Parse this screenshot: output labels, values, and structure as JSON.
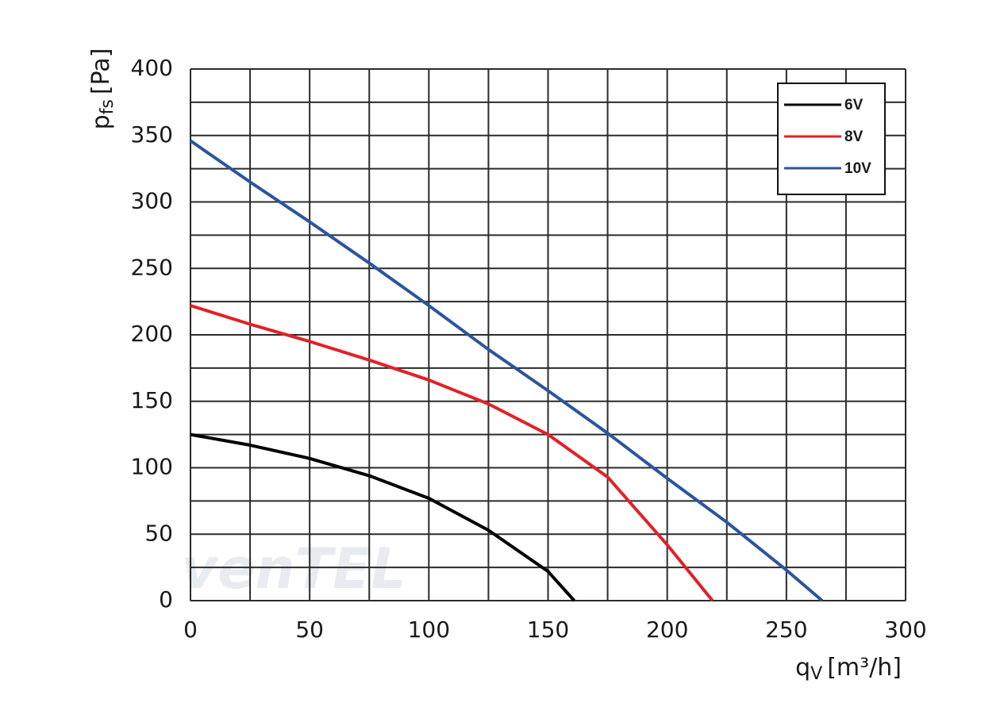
{
  "chart_data": {
    "type": "line",
    "x_label": {
      "symbol": "q",
      "subscript": "V",
      "unit": "[m³/h]"
    },
    "y_label": {
      "symbol": "p",
      "subscript": "fs",
      "unit": "[Pa]"
    },
    "watermark": "venTEL",
    "xlim": [
      0,
      300
    ],
    "ylim": [
      0,
      400
    ],
    "xticks": [
      0,
      50,
      100,
      150,
      200,
      250,
      300
    ],
    "yticks": [
      0,
      50,
      100,
      150,
      200,
      250,
      300,
      350,
      400
    ],
    "minor_xticks": [
      25,
      75,
      125,
      175,
      225,
      275
    ],
    "minor_yticks": [
      25,
      75,
      125,
      175,
      225,
      275,
      325,
      375
    ],
    "grid": true,
    "legend": "upper right",
    "series": [
      {
        "name": "6V",
        "color": "#000000",
        "x": [
          0,
          25,
          50,
          75,
          100,
          125,
          150,
          161
        ],
        "values": [
          125,
          117,
          107,
          94,
          77,
          53,
          22,
          0
        ]
      },
      {
        "name": "8V",
        "color": "#e32027",
        "x": [
          0,
          25,
          50,
          75,
          100,
          125,
          150,
          175,
          200,
          219
        ],
        "values": [
          222,
          208,
          195,
          181,
          166,
          148,
          125,
          93,
          42,
          0
        ]
      },
      {
        "name": "10V",
        "color": "#2a55a0",
        "x": [
          0,
          25,
          50,
          75,
          100,
          125,
          150,
          175,
          200,
          225,
          250,
          265
        ],
        "values": [
          346,
          315,
          285,
          254,
          222,
          189,
          158,
          126,
          92,
          59,
          23,
          0
        ]
      }
    ]
  }
}
